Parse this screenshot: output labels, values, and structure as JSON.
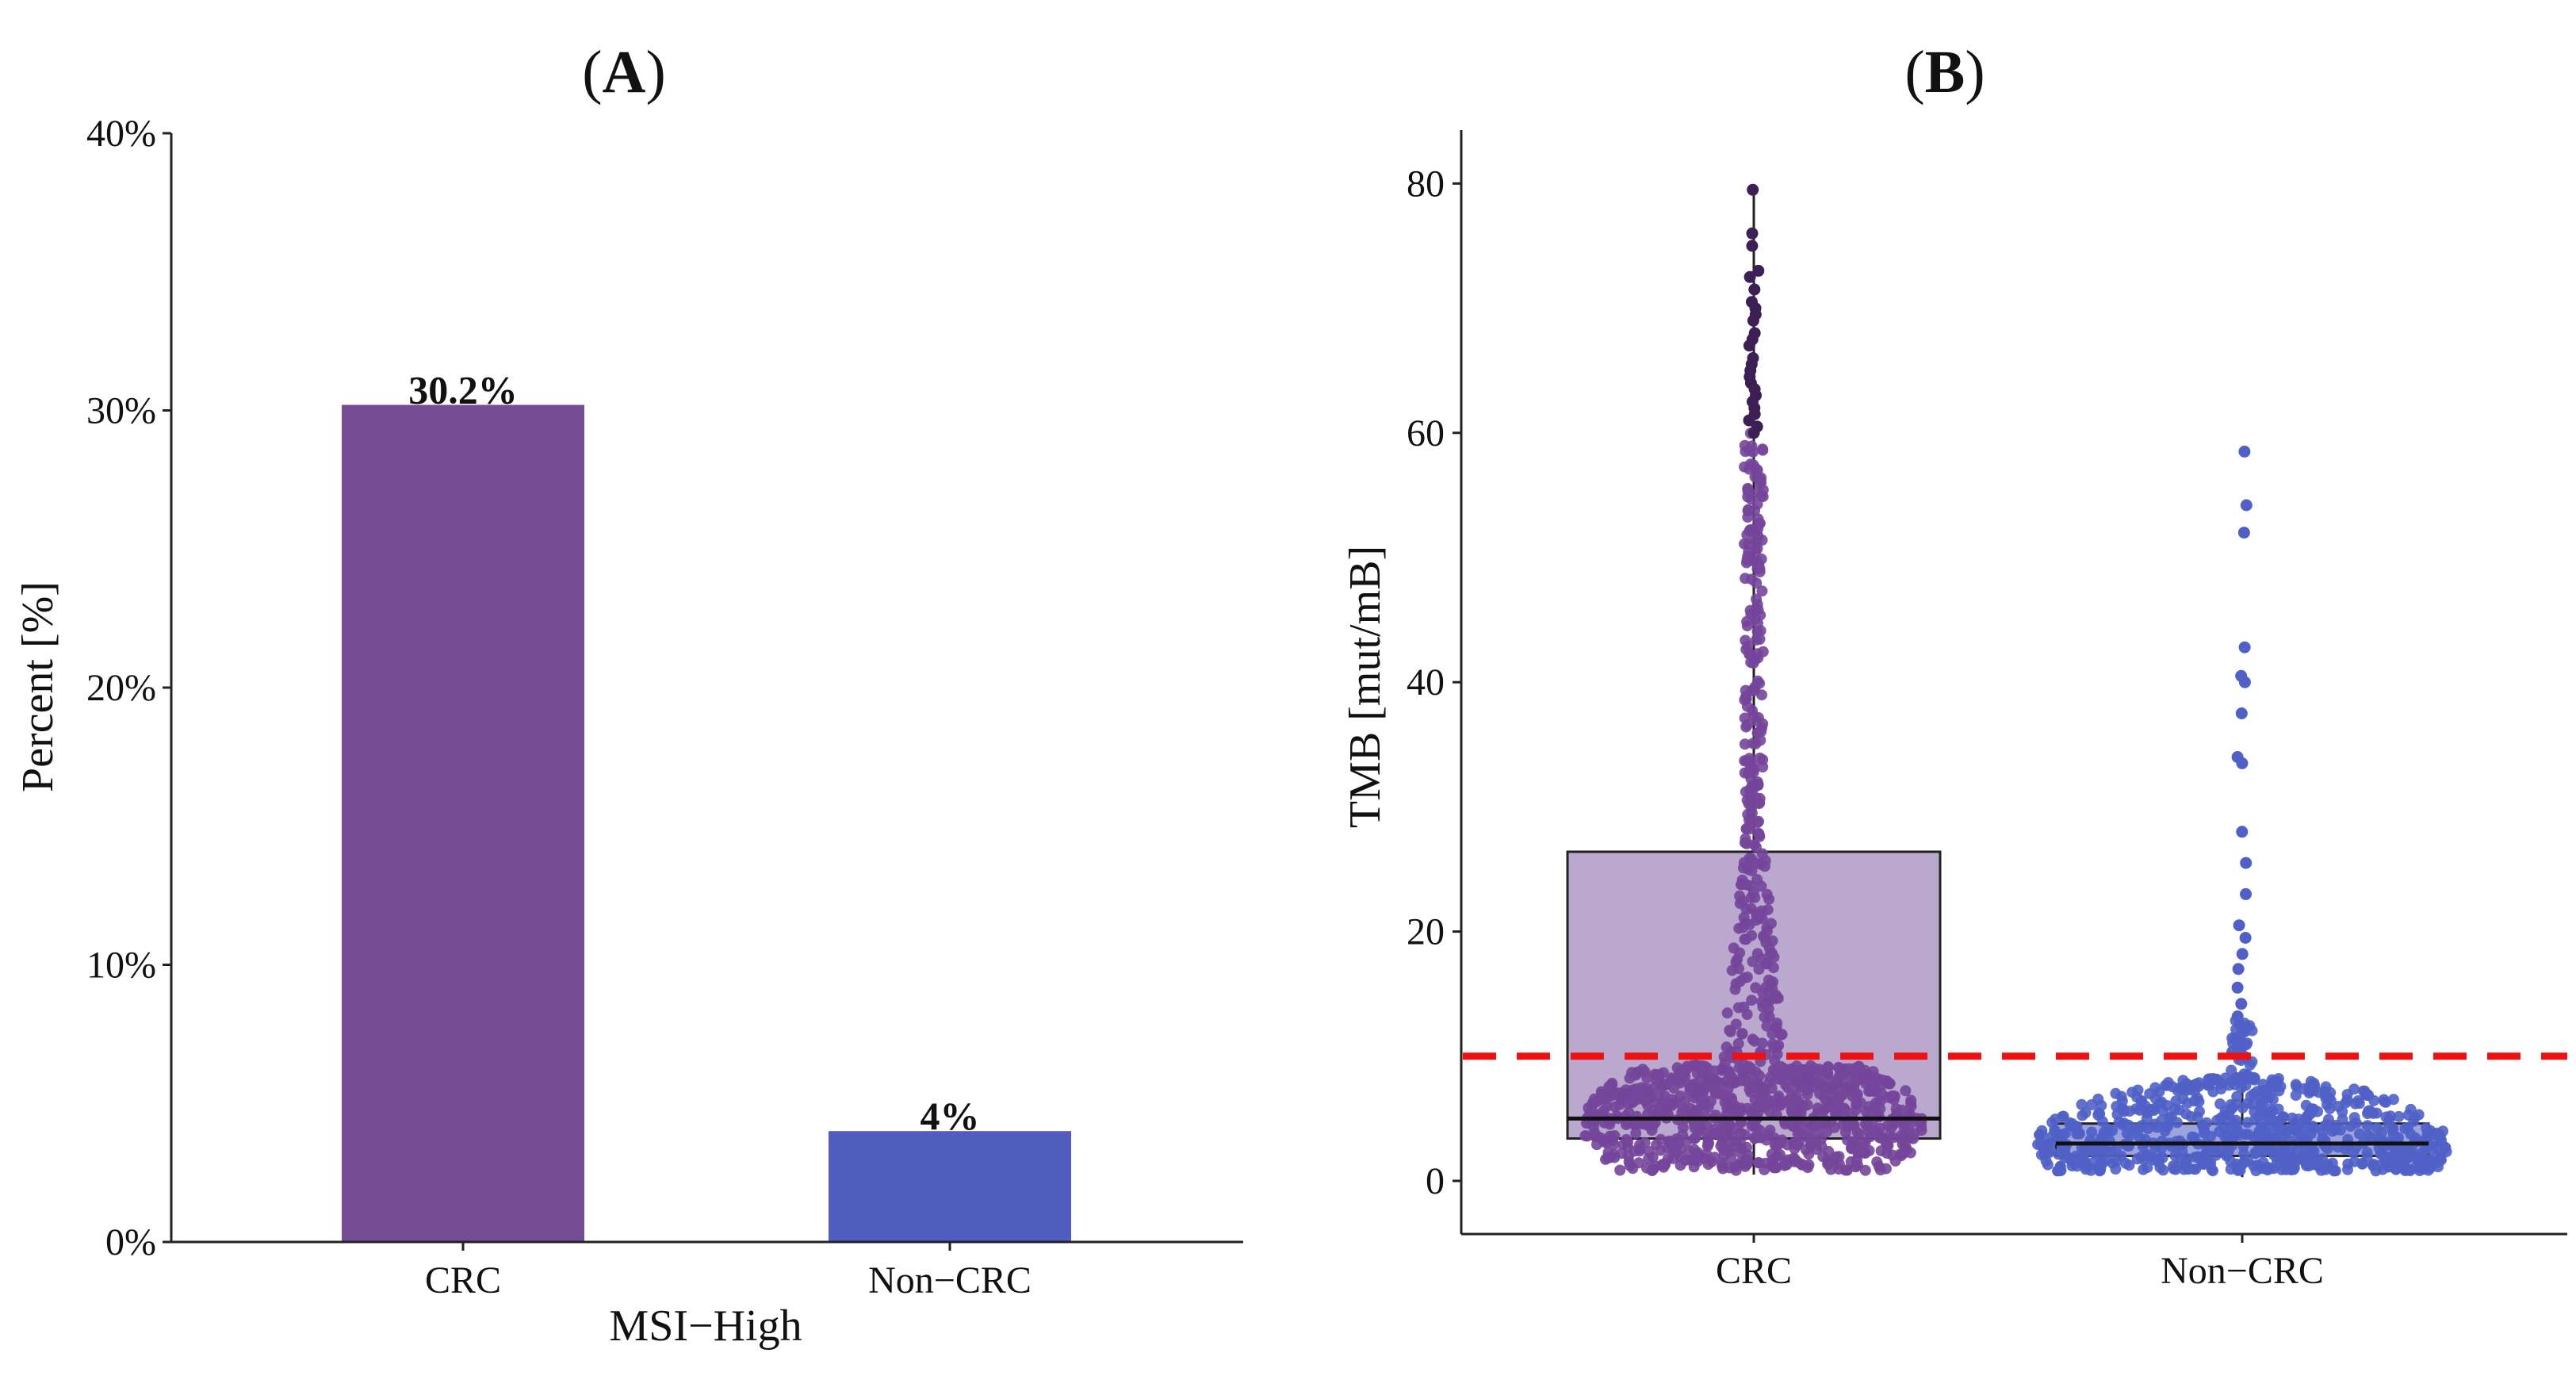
{
  "chart_data": [
    {
      "panel": "A",
      "type": "bar",
      "panel_label": {
        "open": "(",
        "letter": "A",
        "close": ")"
      },
      "categories": [
        "CRC",
        "Non−CRC"
      ],
      "values": [
        30.2,
        4.0
      ],
      "value_labels": [
        "30.2%",
        "4%"
      ],
      "colors": [
        "#774c96",
        "#515cbf"
      ],
      "xlabel": "MSI−High",
      "ylabel": "Percent [%]",
      "ylim": [
        0,
        40
      ],
      "yticks": [
        0,
        10,
        20,
        30,
        40
      ],
      "ytick_labels": [
        "0%",
        "10%",
        "20%",
        "30%",
        "40%"
      ],
      "grid": false
    },
    {
      "panel": "B",
      "type": "box_with_points",
      "panel_label": {
        "open": "(",
        "letter": "B",
        "close": ")"
      },
      "categories": [
        "CRC",
        "Non−CRC"
      ],
      "ylabel": "TMB [mut/mB]",
      "xlabel": "",
      "ylim": [
        -4,
        84
      ],
      "yticks": [
        0,
        20,
        40,
        60,
        80
      ],
      "ytick_labels": [
        "0",
        "20",
        "40",
        "60",
        "80"
      ],
      "threshold": {
        "value": 10,
        "color": "#ee1111",
        "style": "dashed"
      },
      "boxes": [
        {
          "category": "CRC",
          "q1": 3.4,
          "median": 5.0,
          "q3": 26.4,
          "whisker_low": 0.5,
          "whisker_high": 79.5,
          "fill": "#bba8cf",
          "point_color": "#74459a"
        },
        {
          "category": "Non−CRC",
          "q1": 2.0,
          "median": 3.0,
          "q3": 4.6,
          "whisker_low": 0.3,
          "whisker_high": 8.5,
          "fill": "#9da3df",
          "point_color": "#5060c6"
        }
      ],
      "outliers": {
        "CRC": [
          79.5,
          76,
          75,
          73,
          72.5,
          71.5,
          70.5,
          70,
          69.5,
          69,
          68,
          67.5,
          67,
          66,
          65.5,
          65,
          64.5,
          64,
          63.5,
          63,
          62.5,
          62,
          61.5,
          61,
          60.5,
          60
        ],
        "Non−CRC": [
          58.5,
          54.2,
          52,
          42.8,
          40.5,
          40,
          37.5,
          34,
          33.5,
          28,
          25.5,
          23,
          20.5,
          19.5,
          18.2,
          17,
          15.5,
          14.2,
          13.2,
          12.5,
          11.5,
          10.8
        ]
      },
      "grid": false
    }
  ]
}
